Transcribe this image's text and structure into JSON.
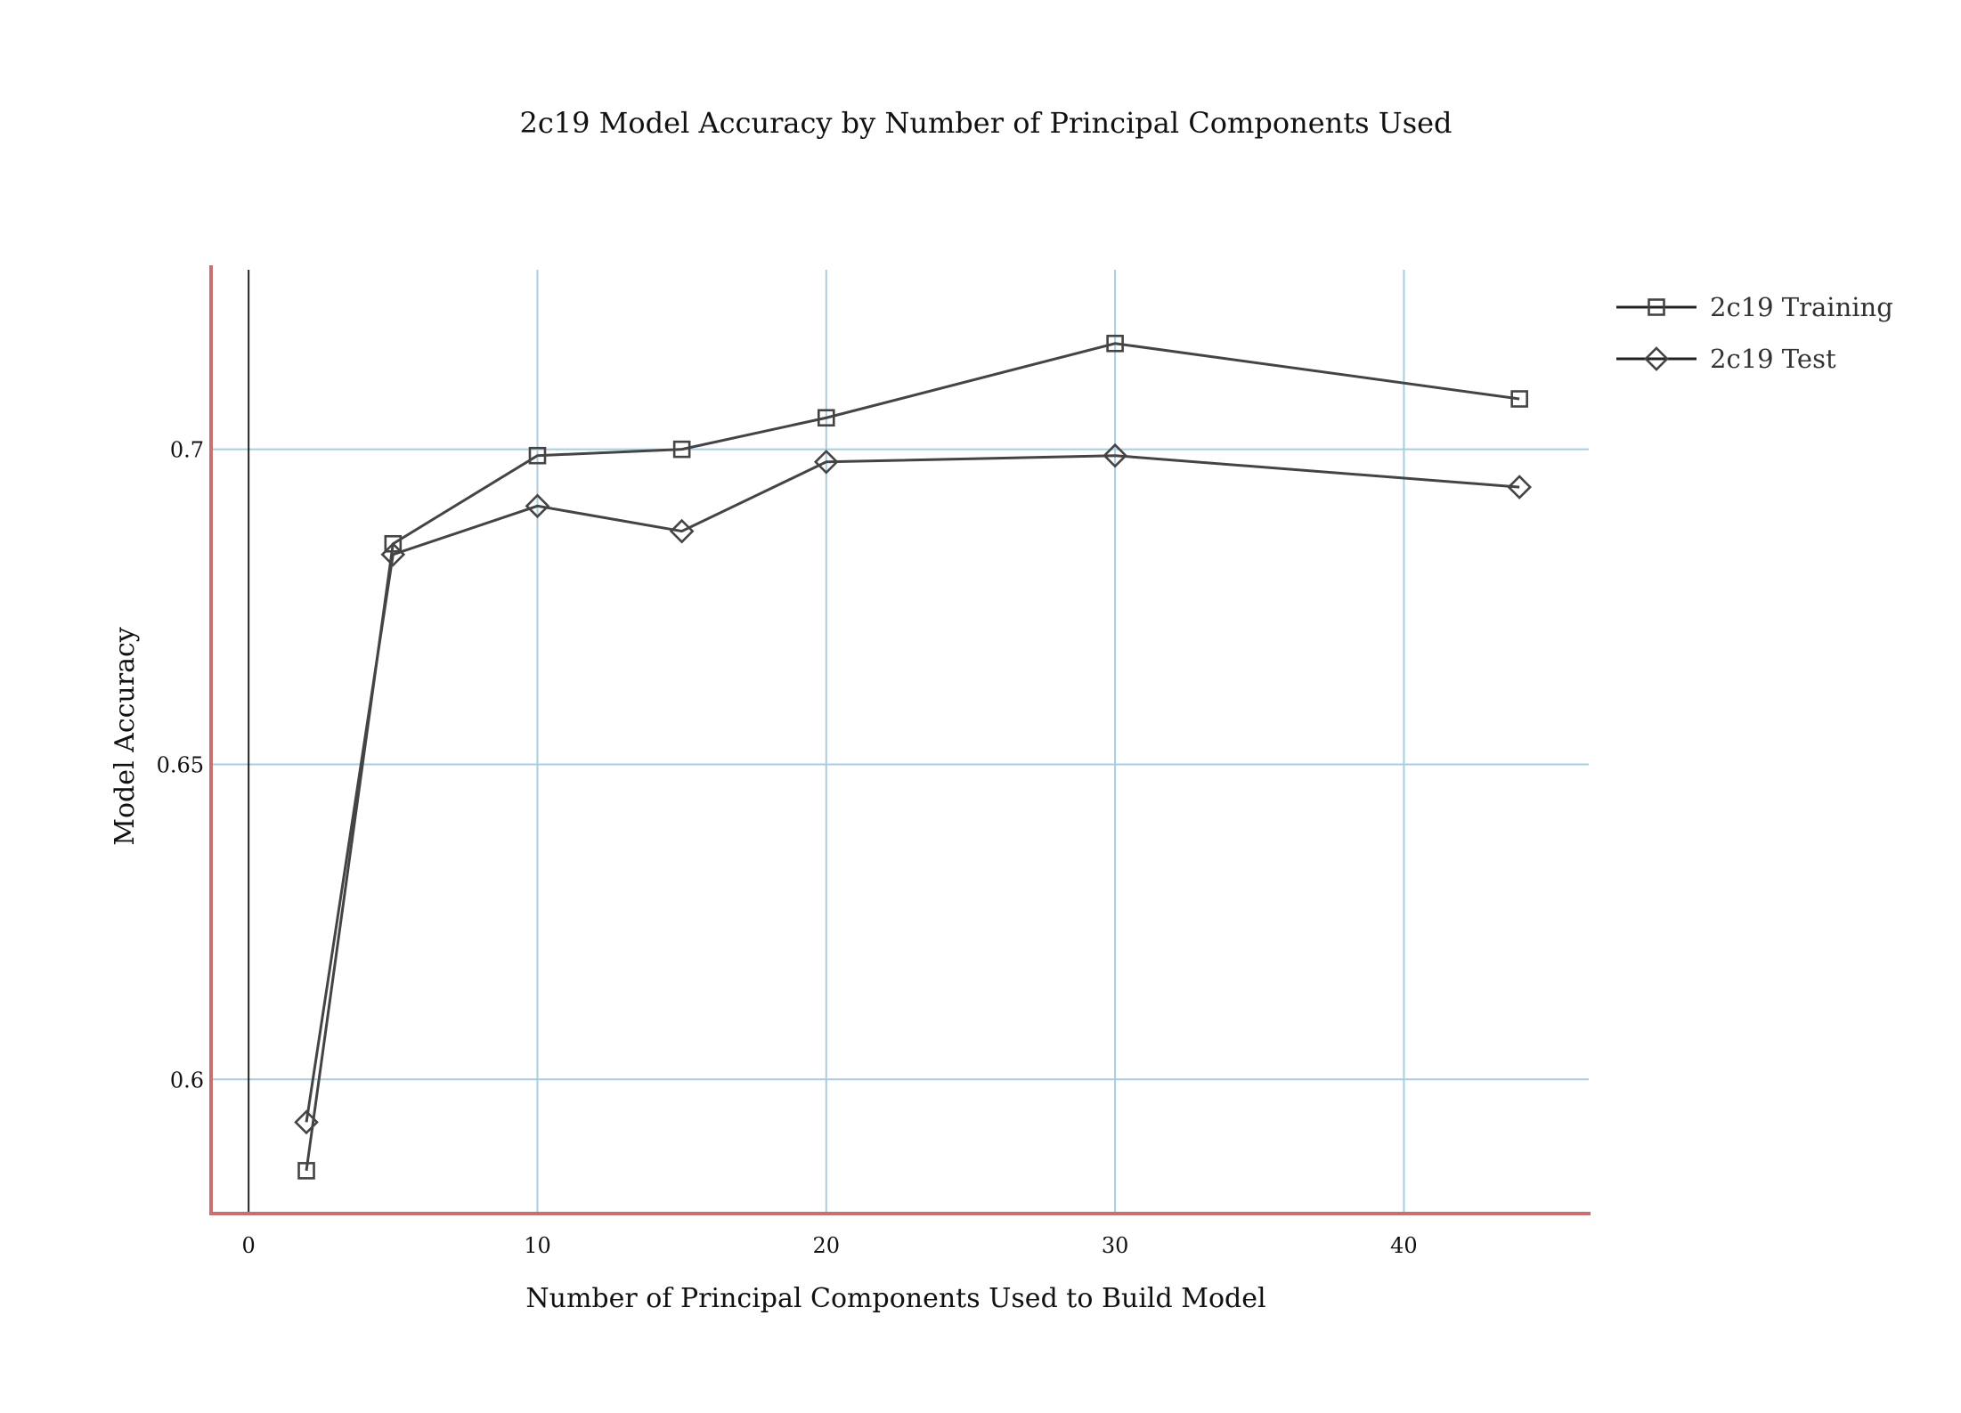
{
  "chart_data": {
    "type": "line",
    "title": "2c19 Model Accuracy by Number of Principal Components Used",
    "xlabel": "Number of Principal Components Used to Build Model",
    "ylabel": "Model Accuracy",
    "xlim": [
      -1.3,
      46.4
    ],
    "ylim": [
      0.5787,
      0.7292
    ],
    "xticks": [
      0,
      10,
      20,
      30,
      40
    ],
    "yticks": [
      0.6,
      0.65,
      0.7
    ],
    "xtick_labels": [
      "0",
      "10",
      "20",
      "30",
      "40"
    ],
    "ytick_labels": [
      "0.6",
      "0.65",
      "0.7"
    ],
    "grid": true,
    "legend_position": "top-right",
    "series": [
      {
        "name": "2c19 Training",
        "marker": "square",
        "x": [
          2,
          5,
          10,
          15,
          20,
          30,
          44
        ],
        "y": [
          0.5855,
          0.685,
          0.699,
          0.7,
          0.705,
          0.7168,
          0.708
        ]
      },
      {
        "name": "2c19 Test",
        "marker": "diamond",
        "x": [
          2,
          5,
          10,
          15,
          20,
          30,
          44
        ],
        "y": [
          0.5932,
          0.6833,
          0.691,
          0.687,
          0.698,
          0.699,
          0.694
        ]
      }
    ],
    "colors": {
      "series": "#444444",
      "grid": "#a8cce0",
      "axis_frame": "#c87070",
      "zero_line": "#222222",
      "text": "#111111"
    }
  }
}
